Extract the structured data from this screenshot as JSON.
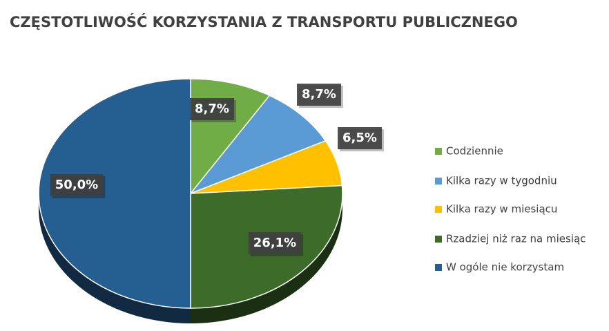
{
  "chart_data": {
    "type": "pie3d",
    "title": "CZĘSTOTLIWOŚĆ KORZYSTANIA Z TRANSPORTU PUBLICZNEGO",
    "categories": [
      "Codziennie",
      "Kilka razy w tygodniu",
      "Kilka razy w miesiącu",
      "Rzadziej niż raz na miesiąc",
      "W ogóle nie korzystam"
    ],
    "values": [
      8.7,
      8.7,
      6.5,
      26.1,
      50.0
    ],
    "value_labels": [
      "8,7%",
      "8,7%",
      "6,5%",
      "26,1%",
      "50,0%"
    ],
    "colors": [
      "#70ad47",
      "#5b9bd5",
      "#ffc000",
      "#3d6b2a",
      "#255e91"
    ],
    "legend": "right"
  }
}
